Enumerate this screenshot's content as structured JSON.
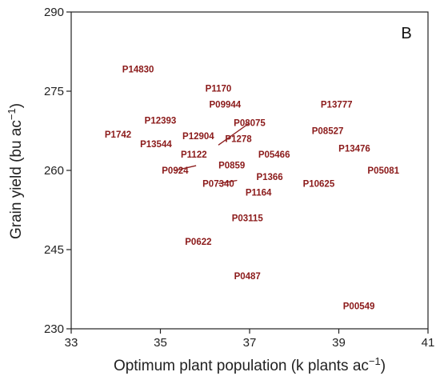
{
  "chart_data": {
    "type": "scatter",
    "panel_label": "B",
    "xlabel": "Optimum plant population (k plants ac",
    "xlabel_sup": "−1",
    "xlabel_suffix": ")",
    "ylabel": "Grain yield (bu ac",
    "ylabel_sup": "−1",
    "ylabel_suffix": ")",
    "xlim": [
      33,
      41
    ],
    "ylim": [
      230,
      290
    ],
    "xticks": [
      33,
      35,
      37,
      39,
      41
    ],
    "yticks": [
      230,
      245,
      260,
      275,
      290
    ],
    "grid": false,
    "marker": "text-label",
    "label_color": "#8b1a1a",
    "points": [
      {
        "label": "P14830",
        "x": 34.5,
        "y": 279.2
      },
      {
        "label": "P1170",
        "x": 36.3,
        "y": 275.5
      },
      {
        "label": "P09944",
        "x": 36.45,
        "y": 272.5
      },
      {
        "label": "P13777",
        "x": 38.95,
        "y": 272.5
      },
      {
        "label": "P12393",
        "x": 35.0,
        "y": 269.5
      },
      {
        "label": "P08075",
        "x": 37.0,
        "y": 269.0,
        "leader_to": {
          "x": 36.3,
          "y": 264.8
        }
      },
      {
        "label": "P08527",
        "x": 38.75,
        "y": 267.5
      },
      {
        "label": "P1742",
        "x": 34.05,
        "y": 266.8
      },
      {
        "label": "P12904",
        "x": 35.85,
        "y": 266.5
      },
      {
        "label": "P1278",
        "x": 36.75,
        "y": 266.0
      },
      {
        "label": "P13544",
        "x": 34.9,
        "y": 265.0
      },
      {
        "label": "P13476",
        "x": 39.35,
        "y": 264.2
      },
      {
        "label": "P1122",
        "x": 35.75,
        "y": 263.0
      },
      {
        "label": "P05466",
        "x": 37.55,
        "y": 263.0
      },
      {
        "label": "P0859",
        "x": 36.6,
        "y": 261.0
      },
      {
        "label": "P05081",
        "x": 40.0,
        "y": 260.0
      },
      {
        "label": "P0924",
        "x": 35.33,
        "y": 260.0,
        "leader_to": {
          "x": 35.8,
          "y": 260.9
        }
      },
      {
        "label": "P1366",
        "x": 37.45,
        "y": 258.8
      },
      {
        "label": "P07340",
        "x": 36.3,
        "y": 257.5,
        "leader_to": {
          "x": 36.72,
          "y": 258.1
        }
      },
      {
        "label": "P10625",
        "x": 38.55,
        "y": 257.5
      },
      {
        "label": "P1164",
        "x": 37.2,
        "y": 255.8
      },
      {
        "label": "P03115",
        "x": 36.95,
        "y": 251.0
      },
      {
        "label": "P0622",
        "x": 35.85,
        "y": 246.5
      },
      {
        "label": "P0487",
        "x": 36.95,
        "y": 240.0
      },
      {
        "label": "P00549",
        "x": 39.45,
        "y": 234.3
      }
    ]
  }
}
